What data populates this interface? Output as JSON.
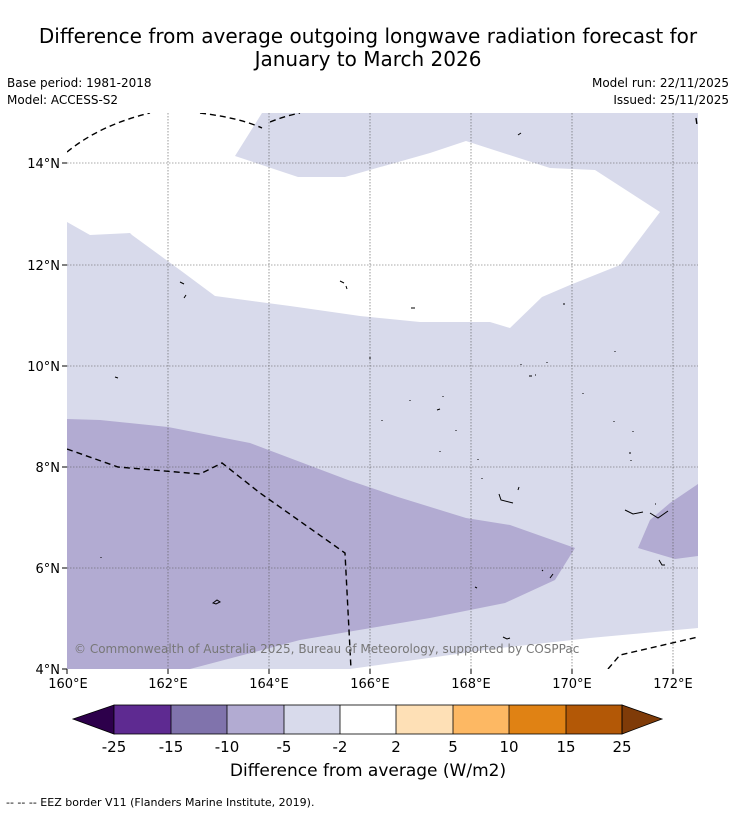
{
  "title_line1": "Difference from average outgoing longwave radiation forecast for",
  "title_line2": "January to March 2026",
  "base_period": "Base period: 1981-2018",
  "model": "Model: ACCESS-S2",
  "model_run": "Model run: 22/11/2025",
  "issued": "Issued: 25/11/2025",
  "copyright": "© Commonwealth of Australia 2025, Bureau of Meteorology, supported by COSPPac",
  "axes": {
    "lat_labels": [
      "14°N",
      "12°N",
      "10°N",
      "8°N",
      "6°N",
      "4°N"
    ],
    "lon_labels": [
      "160°E",
      "162°E",
      "164°E",
      "166°E",
      "168°E",
      "170°E",
      "172°E"
    ]
  },
  "colorbar": {
    "title": "Difference from average (W/m2)",
    "ticks": [
      "-25",
      "-15",
      "-10",
      "-5",
      "-2",
      "2",
      "5",
      "10",
      "15",
      "25"
    ],
    "under_color": "#2d004b",
    "over_color": "#7f3b08",
    "colors": [
      "#5e2a91",
      "#8073ac",
      "#b2abd2",
      "#d8daeb",
      "#ffffff",
      "#fee0b6",
      "#fdb863",
      "#e08214",
      "#b35806"
    ]
  },
  "footnote": "--  --  -- EEZ border V11 (Flanders Marine Institute, 2019)."
}
